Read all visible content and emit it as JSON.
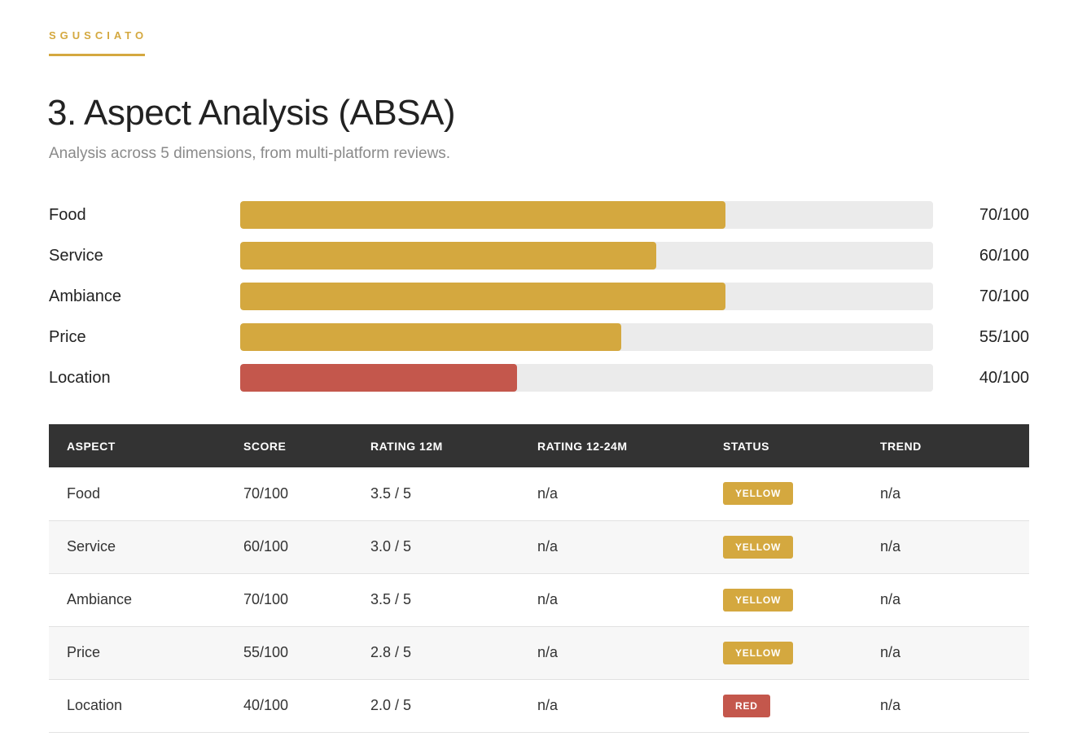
{
  "brand": {
    "name": "SGUSCIATO",
    "color": "#d4a83f"
  },
  "page": {
    "title": "3. Aspect Analysis (ABSA)",
    "subtitle": "Analysis across 5 dimensions, from multi-platform reviews."
  },
  "bars": [
    {
      "label": "Food",
      "value": 70,
      "max": 100,
      "score_text": "70/100",
      "color": "#d4a83f"
    },
    {
      "label": "Service",
      "value": 60,
      "max": 100,
      "score_text": "60/100",
      "color": "#d4a83f"
    },
    {
      "label": "Ambiance",
      "value": 70,
      "max": 100,
      "score_text": "70/100",
      "color": "#d4a83f"
    },
    {
      "label": "Price",
      "value": 55,
      "max": 100,
      "score_text": "55/100",
      "color": "#d4a83f"
    },
    {
      "label": "Location",
      "value": 40,
      "max": 100,
      "score_text": "40/100",
      "color": "#c4574c"
    }
  ],
  "table": {
    "headers": [
      "ASPECT",
      "SCORE",
      "RATING 12M",
      "RATING 12-24M",
      "STATUS",
      "TREND"
    ],
    "rows": [
      {
        "aspect": "Food",
        "score": "70/100",
        "rating_12m": "3.5 / 5",
        "rating_12_24m": "n/a",
        "status": "YELLOW",
        "status_color": "#d4a83f",
        "trend": "n/a"
      },
      {
        "aspect": "Service",
        "score": "60/100",
        "rating_12m": "3.0 / 5",
        "rating_12_24m": "n/a",
        "status": "YELLOW",
        "status_color": "#d4a83f",
        "trend": "n/a"
      },
      {
        "aspect": "Ambiance",
        "score": "70/100",
        "rating_12m": "3.5 / 5",
        "rating_12_24m": "n/a",
        "status": "YELLOW",
        "status_color": "#d4a83f",
        "trend": "n/a"
      },
      {
        "aspect": "Price",
        "score": "55/100",
        "rating_12m": "2.8 / 5",
        "rating_12_24m": "n/a",
        "status": "YELLOW",
        "status_color": "#d4a83f",
        "trend": "n/a"
      },
      {
        "aspect": "Location",
        "score": "40/100",
        "rating_12m": "2.0 / 5",
        "rating_12_24m": "n/a",
        "status": "RED",
        "status_color": "#c4574c",
        "trend": "n/a"
      }
    ]
  }
}
